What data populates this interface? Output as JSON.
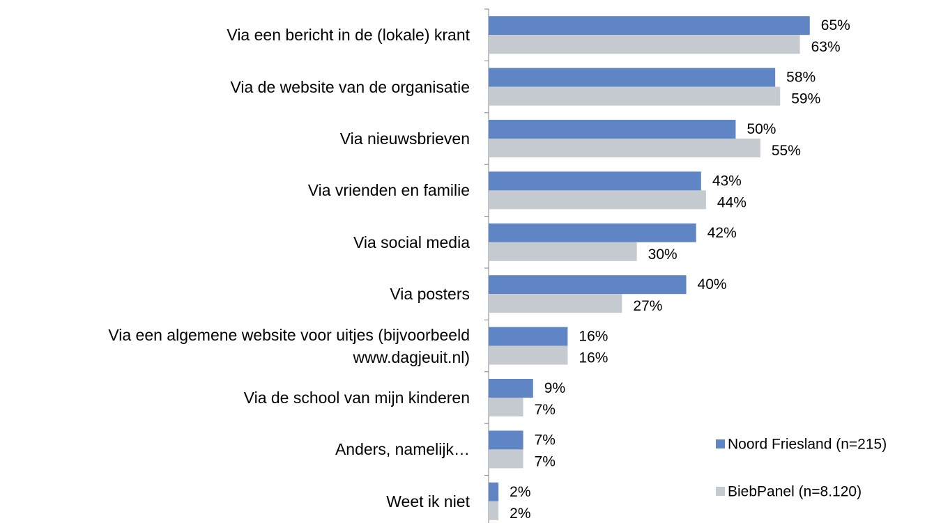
{
  "chart_data": {
    "type": "bar",
    "orientation": "horizontal",
    "categories": [
      "Via een bericht in de (lokale) krant",
      "Via de website van de organisatie",
      "Via nieuwsbrieven",
      "Via vrienden en familie",
      "Via social media",
      "Via posters",
      "Via een algemene website voor uitjes (bijvoorbeeld www.dagjeuit.nl)",
      "Via de school van mijn kinderen",
      "Anders, namelijk…",
      "Weet ik niet"
    ],
    "series": [
      {
        "name": "Noord Friesland (n=215)",
        "color": "#6085c5",
        "values": [
          65,
          58,
          50,
          43,
          42,
          40,
          16,
          9,
          7,
          2
        ],
        "value_labels": [
          "65%",
          "58%",
          "50%",
          "43%",
          "42%",
          "40%",
          "16%",
          "9%",
          "7%",
          "2%"
        ]
      },
      {
        "name": "BiebPanel (n=8.120)",
        "color": "#c5cad1",
        "values": [
          63,
          59,
          55,
          44,
          30,
          27,
          16,
          7,
          7,
          2
        ],
        "value_labels": [
          "63%",
          "59%",
          "55%",
          "44%",
          "30%",
          "27%",
          "16%",
          "7%",
          "7%",
          "2%"
        ]
      }
    ],
    "xlim": [
      0,
      90
    ],
    "legend": "bottom-right"
  }
}
